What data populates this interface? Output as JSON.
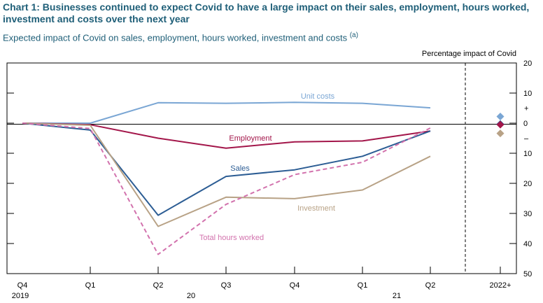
{
  "title": "Chart 1: Businesses continued to expect Covid to have a large impact on their sales, employment, hours worked, investment and costs over the next year",
  "subtitle": "Expected impact of Covid on sales, employment, hours worked, investment and costs",
  "subtitle_note": "(a)",
  "chart_data": {
    "type": "line",
    "ylabel": "Percentage impact of Covid",
    "ylim": [
      -50,
      20
    ],
    "y_ticks": [
      20,
      10,
      0,
      -10,
      -20,
      -30,
      -40,
      -50
    ],
    "y_tick_labels": [
      "20",
      "10",
      "0",
      "10",
      "20",
      "30",
      "40",
      "50"
    ],
    "y_sign_labels": [
      "+",
      "–"
    ],
    "x_tick_labels": [
      "Q4",
      "Q1",
      "Q2",
      "Q3",
      "Q4",
      "Q1",
      "Q2",
      "2022+"
    ],
    "x_group_labels": [
      "2019",
      "20",
      "21"
    ],
    "categories": [
      "2019 Q4",
      "2020 Q1",
      "2020 Q2",
      "2020 Q3",
      "2020 Q4",
      "2021 Q1",
      "2021 Q2"
    ],
    "series": [
      {
        "name": "Unit costs",
        "color": "#7aa6d4",
        "dash": false,
        "values": [
          0,
          0,
          6.8,
          6.6,
          6.9,
          6.6,
          5.1
        ],
        "value_2022": 2.2
      },
      {
        "name": "Employment",
        "color": "#a3164a",
        "dash": false,
        "values": [
          0,
          -0.5,
          -5,
          -8.3,
          -6.2,
          -5.9,
          -2.6
        ],
        "value_2022": -0.5
      },
      {
        "name": "Sales",
        "color": "#2c5d94",
        "dash": false,
        "values": [
          0,
          -2.3,
          -30.6,
          -17.7,
          -15.5,
          -11,
          -2.6
        ],
        "value_2022": -0.3
      },
      {
        "name": "Investment",
        "color": "#b8a286",
        "dash": false,
        "values": [
          0,
          -0.7,
          -34.3,
          -24.6,
          -25.1,
          -22.2,
          -11
        ],
        "value_2022": -3.4
      },
      {
        "name": "Total hours worked",
        "color": "#d272ad",
        "dash": true,
        "values": [
          0,
          -1.8,
          -43.6,
          -27,
          -17.1,
          -13,
          -1.6
        ],
        "value_2022": null
      }
    ],
    "grid": false,
    "legend": "inline labels"
  }
}
